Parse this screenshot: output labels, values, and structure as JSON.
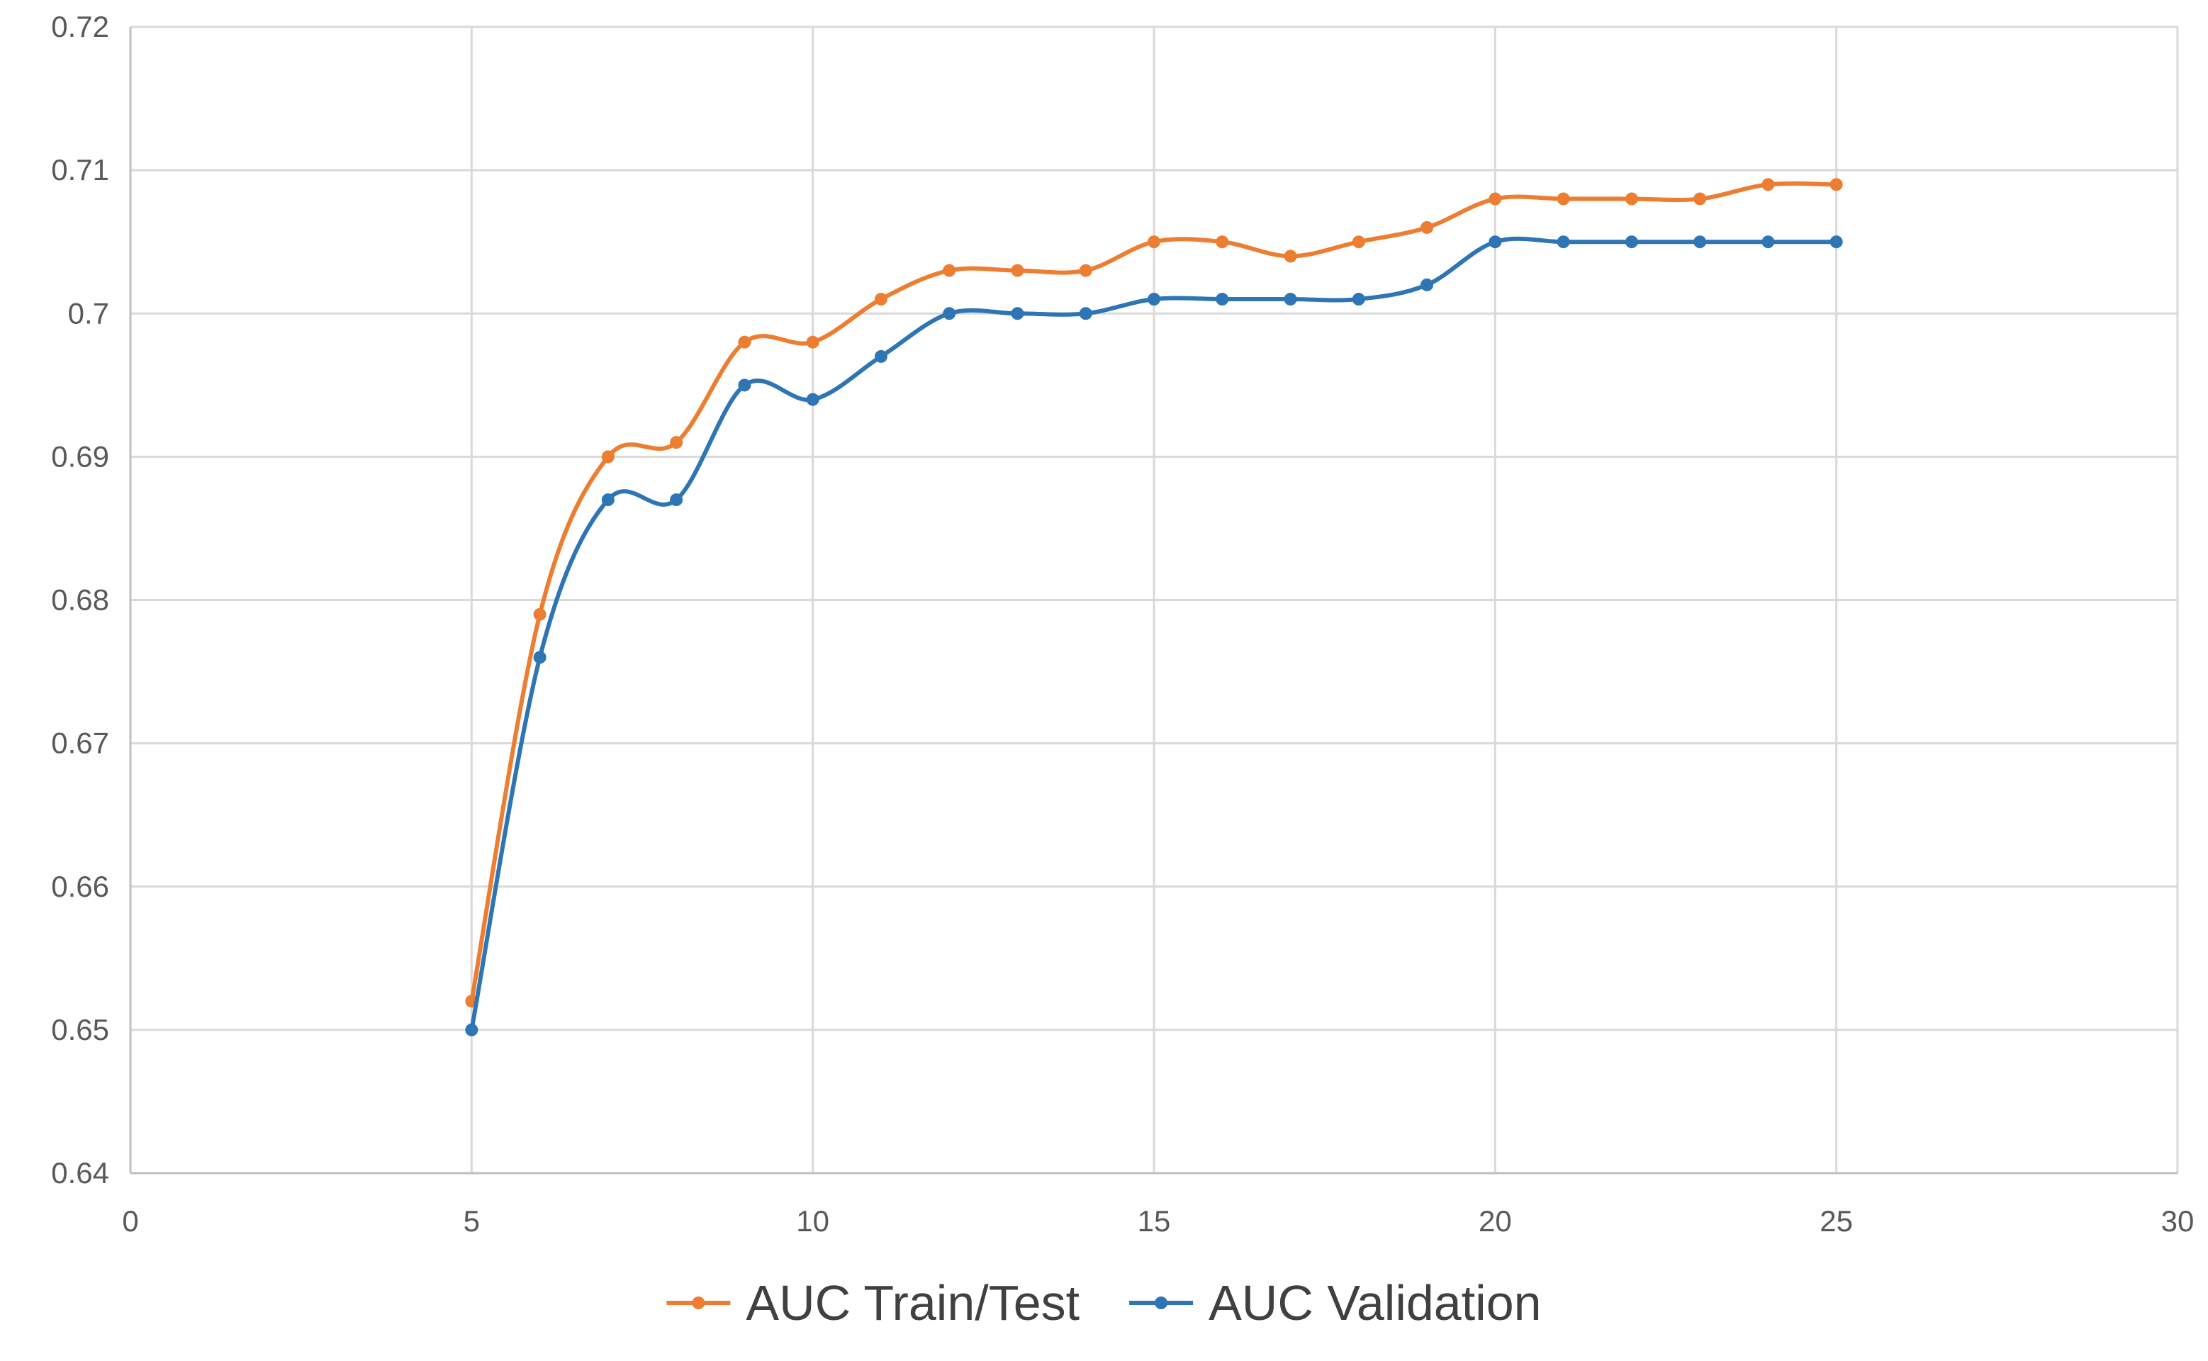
{
  "chart_data": {
    "type": "line",
    "title": "",
    "xlabel": "",
    "ylabel": "",
    "xlim": [
      0,
      30
    ],
    "ylim": [
      0.64,
      0.72
    ],
    "x_ticks": [
      0,
      5,
      10,
      15,
      20,
      25,
      30
    ],
    "x_tick_labels": [
      "0",
      "5",
      "10",
      "15",
      "20",
      "25",
      "30"
    ],
    "y_ticks": [
      0.64,
      0.65,
      0.66,
      0.67,
      0.68,
      0.69,
      0.7,
      0.71,
      0.72
    ],
    "y_tick_labels": [
      "0.64",
      "0.65",
      "0.66",
      "0.67",
      "0.68",
      "0.69",
      "0.7",
      "0.71",
      "0.72"
    ],
    "grid": true,
    "smoothed": true,
    "legend_position": "bottom",
    "x": [
      5,
      6,
      7,
      8,
      9,
      10,
      11,
      12,
      13,
      14,
      15,
      16,
      17,
      18,
      19,
      20,
      21,
      22,
      23,
      24,
      25
    ],
    "series": [
      {
        "name": "AUC Train/Test",
        "color": "#ED7D31",
        "values": [
          0.652,
          0.679,
          0.69,
          0.691,
          0.698,
          0.698,
          0.701,
          0.703,
          0.703,
          0.703,
          0.705,
          0.705,
          0.704,
          0.705,
          0.706,
          0.708,
          0.708,
          0.708,
          0.708,
          0.709,
          0.709
        ]
      },
      {
        "name": "AUC Validation",
        "color": "#2E75B6",
        "values": [
          0.65,
          0.676,
          0.687,
          0.687,
          0.695,
          0.694,
          0.697,
          0.7,
          0.7,
          0.7,
          0.701,
          0.701,
          0.701,
          0.701,
          0.702,
          0.705,
          0.705,
          0.705,
          0.705,
          0.705,
          0.705
        ]
      }
    ]
  }
}
